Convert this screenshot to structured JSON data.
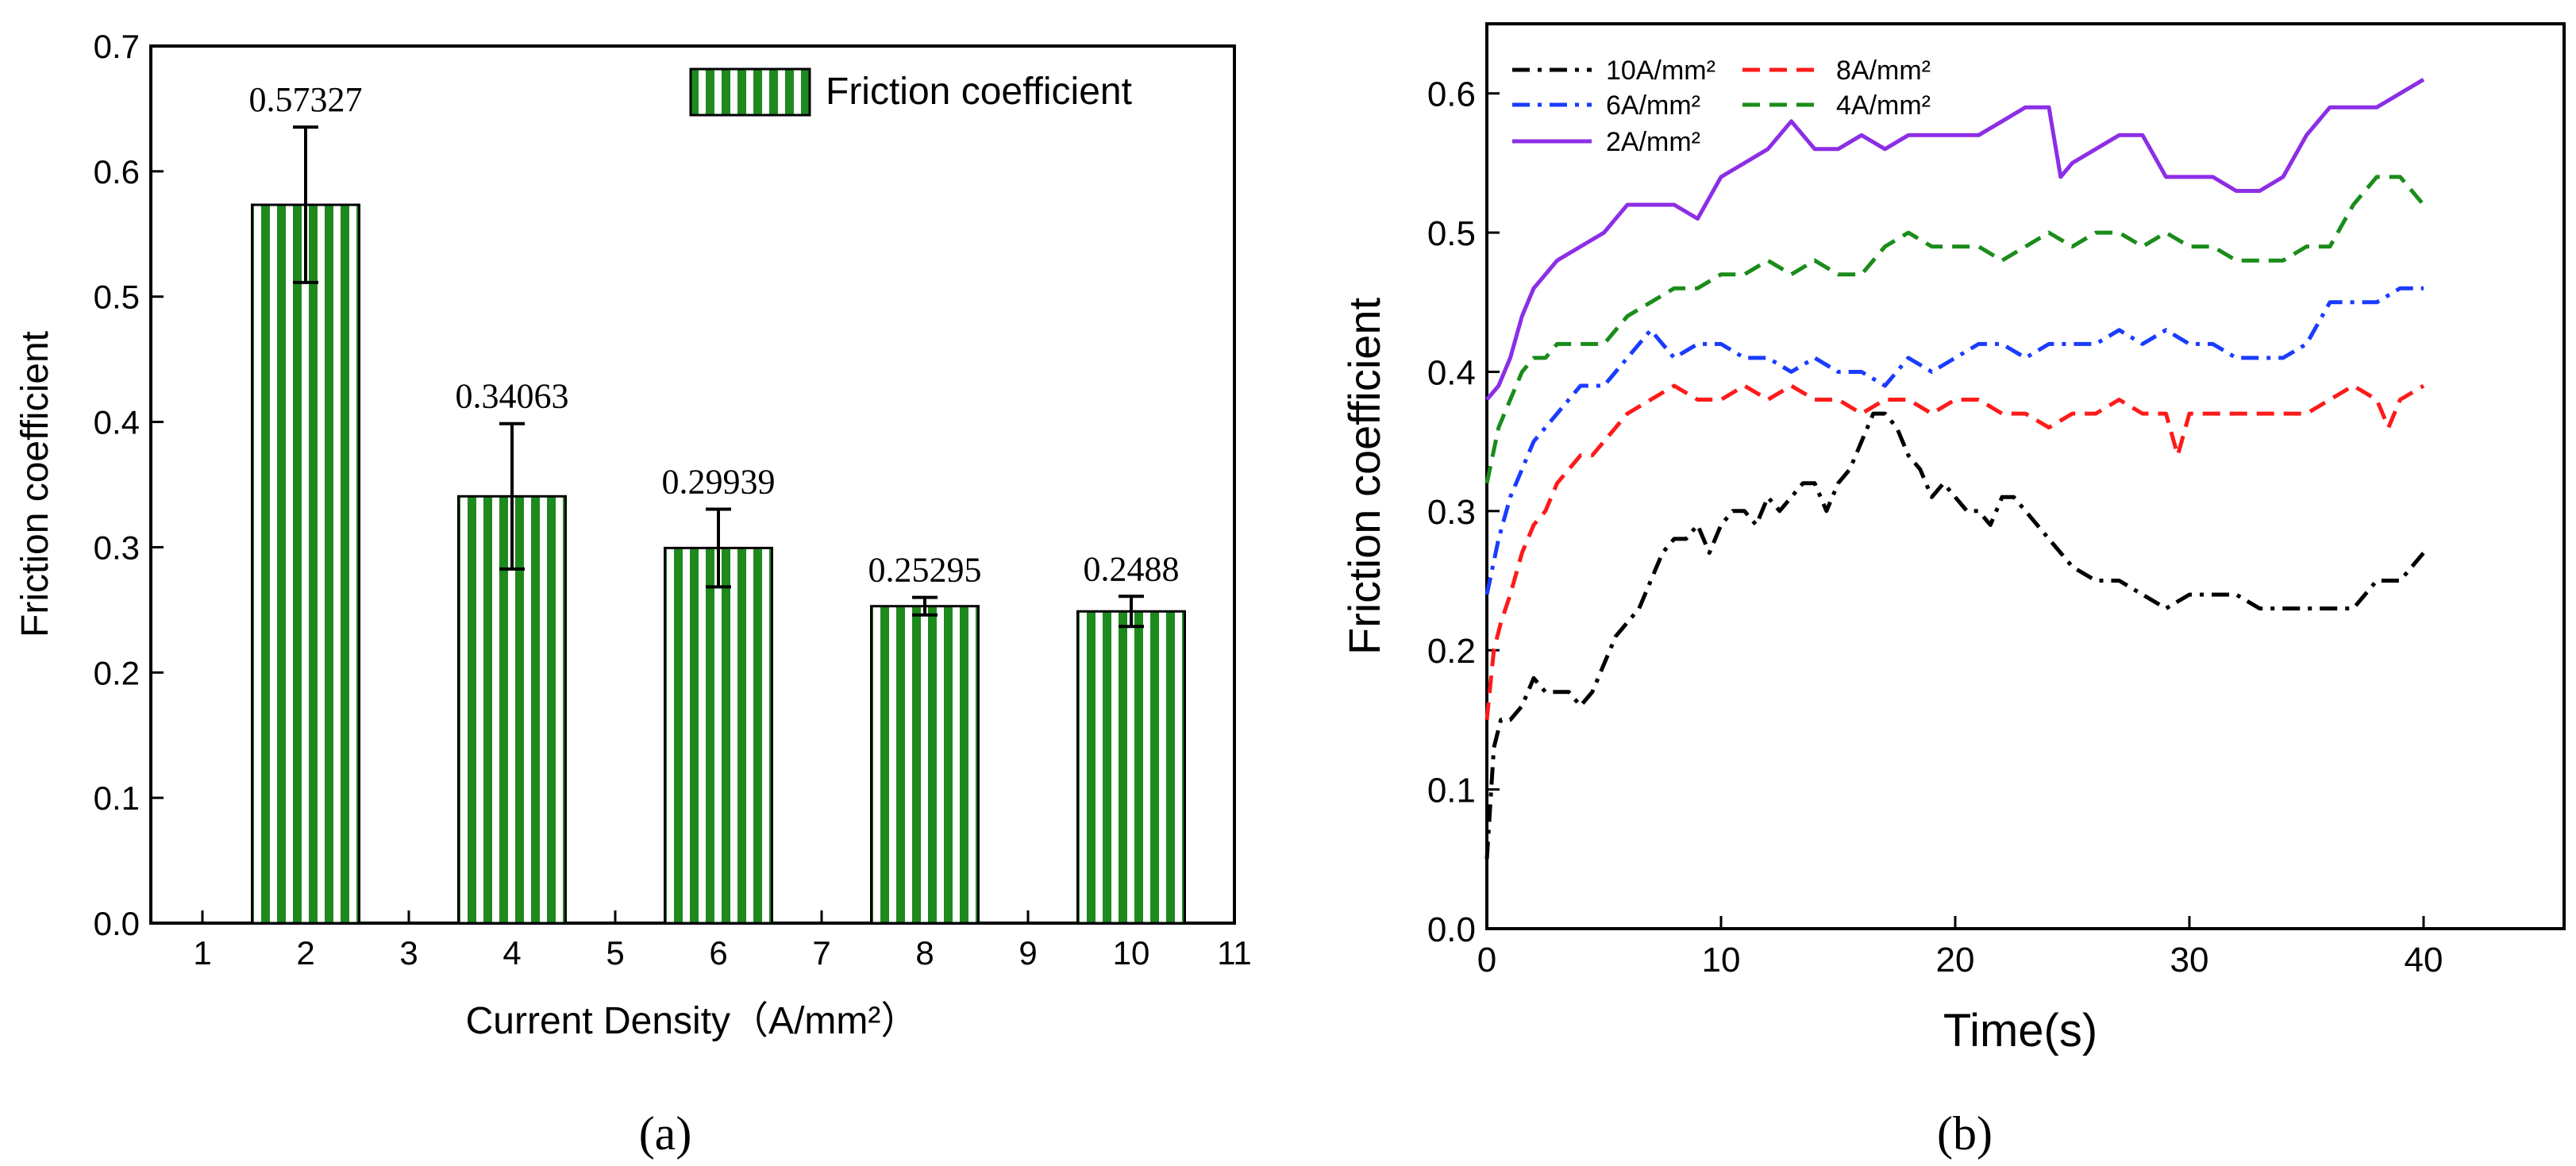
{
  "chart_data": [
    {
      "panel_label": "(a)",
      "type": "bar",
      "categories": [
        2,
        4,
        6,
        8,
        10
      ],
      "values": [
        0.57327,
        0.34063,
        0.29939,
        0.25295,
        0.2488
      ],
      "errors": [
        0.062,
        0.058,
        0.031,
        0.007,
        0.012
      ],
      "value_labels": [
        "0.57327",
        "0.34063",
        "0.29939",
        "0.25295",
        "0.2488"
      ],
      "legend": [
        "Friction coefficient"
      ],
      "legend_position": "top-right",
      "xlabel": "Current Density（A/mm²）",
      "ylabel": "Friction coefficient",
      "xlim": [
        0.5,
        11
      ],
      "ylim": [
        0,
        0.7
      ],
      "xticks": [
        "1",
        "2",
        "3",
        "4",
        "5",
        "6",
        "7",
        "8",
        "9",
        "10",
        "11"
      ],
      "yticks": [
        "0.0",
        "0.1",
        "0.2",
        "0.3",
        "0.4",
        "0.5",
        "0.6",
        "0.7"
      ],
      "grid": false,
      "colors": {
        "bar_fill": "#1e8a1e",
        "bar_stripe": "#ffffff",
        "bar_edge": "#000000"
      }
    },
    {
      "panel_label": "(b)",
      "type": "line",
      "xlabel": "Time(s)",
      "ylabel": "Friction coefficient",
      "xlim": [
        0,
        46
      ],
      "ylim": [
        0,
        0.65
      ],
      "xticks": [
        "0",
        "10",
        "20",
        "30",
        "40"
      ],
      "yticks": [
        "0.0",
        "0.1",
        "0.2",
        "0.3",
        "0.4",
        "0.5",
        "0.6"
      ],
      "grid": false,
      "legend_position": "top-left",
      "series": [
        {
          "name": "10A/mm²",
          "color": "#000000",
          "dash": "dash-dot",
          "x": [
            0,
            0.3,
            0.6,
            1,
            1.5,
            2,
            2.5,
            3,
            3.5,
            4,
            4.5,
            5,
            5.5,
            6,
            6.5,
            7,
            7.5,
            8,
            8.5,
            9,
            9.5,
            10,
            10.5,
            11,
            11.5,
            12,
            12.5,
            13,
            13.5,
            14,
            14.5,
            15,
            15.5,
            16,
            16.5,
            17,
            17.5,
            18,
            18.5,
            19,
            19.5,
            20,
            20.5,
            21,
            21.5,
            22,
            22.5,
            23,
            23.5,
            24,
            24.5,
            25,
            26,
            27,
            28,
            29,
            30,
            31,
            32,
            33,
            34,
            35,
            36,
            37,
            38,
            39,
            40
          ],
          "y": [
            0.05,
            0.13,
            0.15,
            0.15,
            0.16,
            0.18,
            0.17,
            0.17,
            0.17,
            0.16,
            0.17,
            0.19,
            0.21,
            0.22,
            0.23,
            0.25,
            0.27,
            0.28,
            0.28,
            0.29,
            0.27,
            0.29,
            0.3,
            0.3,
            0.29,
            0.31,
            0.3,
            0.31,
            0.32,
            0.32,
            0.3,
            0.32,
            0.33,
            0.35,
            0.37,
            0.37,
            0.36,
            0.34,
            0.33,
            0.31,
            0.32,
            0.31,
            0.3,
            0.3,
            0.29,
            0.31,
            0.31,
            0.3,
            0.29,
            0.28,
            0.27,
            0.26,
            0.25,
            0.25,
            0.24,
            0.23,
            0.24,
            0.24,
            0.24,
            0.23,
            0.23,
            0.23,
            0.23,
            0.23,
            0.25,
            0.25,
            0.27
          ]
        },
        {
          "name": "8A/mm²",
          "color": "#ff1a1a",
          "dash": "dash",
          "x": [
            0,
            0.3,
            0.6,
            1,
            1.5,
            2,
            2.5,
            3,
            3.5,
            4,
            4.5,
            5,
            5.5,
            6,
            7,
            8,
            9,
            10,
            11,
            12,
            13,
            14,
            15,
            16,
            17,
            18,
            19,
            20,
            21,
            22,
            23,
            24,
            25,
            26,
            27,
            28,
            29,
            29.5,
            30,
            31,
            32,
            33,
            34,
            35,
            36,
            37,
            38,
            38.5,
            39,
            40
          ],
          "y": [
            0.15,
            0.2,
            0.22,
            0.24,
            0.27,
            0.29,
            0.3,
            0.32,
            0.33,
            0.34,
            0.34,
            0.35,
            0.36,
            0.37,
            0.38,
            0.39,
            0.38,
            0.38,
            0.39,
            0.38,
            0.39,
            0.38,
            0.38,
            0.37,
            0.38,
            0.38,
            0.37,
            0.38,
            0.38,
            0.37,
            0.37,
            0.36,
            0.37,
            0.37,
            0.38,
            0.37,
            0.37,
            0.34,
            0.37,
            0.37,
            0.37,
            0.37,
            0.37,
            0.37,
            0.38,
            0.39,
            0.38,
            0.36,
            0.38,
            0.39
          ]
        },
        {
          "name": "6A/mm²",
          "color": "#1a3cff",
          "dash": "dash-dot",
          "x": [
            0,
            0.5,
            1,
            1.5,
            2,
            2.5,
            3,
            3.5,
            4,
            5,
            6,
            7,
            8,
            9,
            10,
            11,
            12,
            13,
            14,
            15,
            16,
            17,
            18,
            19,
            20,
            21,
            22,
            23,
            24,
            25,
            26,
            27,
            28,
            29,
            30,
            31,
            32,
            33,
            34,
            35,
            36,
            37,
            38,
            39,
            40
          ],
          "y": [
            0.24,
            0.28,
            0.31,
            0.33,
            0.35,
            0.36,
            0.37,
            0.38,
            0.39,
            0.39,
            0.41,
            0.43,
            0.41,
            0.42,
            0.42,
            0.41,
            0.41,
            0.4,
            0.41,
            0.4,
            0.4,
            0.39,
            0.41,
            0.4,
            0.41,
            0.42,
            0.42,
            0.41,
            0.42,
            0.42,
            0.42,
            0.43,
            0.42,
            0.43,
            0.42,
            0.42,
            0.41,
            0.41,
            0.41,
            0.42,
            0.45,
            0.45,
            0.45,
            0.46,
            0.46
          ]
        },
        {
          "name": "4A/mm²",
          "color": "#1a8c1a",
          "dash": "dash",
          "x": [
            0,
            0.5,
            1,
            1.5,
            2,
            2.5,
            3,
            4,
            5,
            6,
            7,
            8,
            9,
            10,
            11,
            12,
            13,
            14,
            15,
            16,
            17,
            18,
            19,
            20,
            21,
            22,
            23,
            24,
            25,
            26,
            27,
            28,
            29,
            30,
            31,
            32,
            33,
            34,
            35,
            36,
            37,
            38,
            39,
            40
          ],
          "y": [
            0.32,
            0.36,
            0.38,
            0.4,
            0.41,
            0.41,
            0.42,
            0.42,
            0.42,
            0.44,
            0.45,
            0.46,
            0.46,
            0.47,
            0.47,
            0.48,
            0.47,
            0.48,
            0.47,
            0.47,
            0.49,
            0.5,
            0.49,
            0.49,
            0.49,
            0.48,
            0.49,
            0.5,
            0.49,
            0.5,
            0.5,
            0.49,
            0.5,
            0.49,
            0.49,
            0.48,
            0.48,
            0.48,
            0.49,
            0.49,
            0.52,
            0.54,
            0.54,
            0.52
          ]
        },
        {
          "name": "2A/mm²",
          "color": "#8c2ee6",
          "dash": "solid",
          "x": [
            0,
            0.5,
            1,
            1.5,
            2,
            2.5,
            3,
            4,
            5,
            6,
            7,
            8,
            9,
            10,
            11,
            12,
            13,
            14,
            15,
            16,
            17,
            18,
            19,
            20,
            21,
            22,
            23,
            24,
            24.5,
            25,
            26,
            27,
            28,
            29,
            30,
            31,
            32,
            33,
            34,
            35,
            36,
            37,
            38,
            39,
            40
          ],
          "y": [
            0.38,
            0.39,
            0.41,
            0.44,
            0.46,
            0.47,
            0.48,
            0.49,
            0.5,
            0.52,
            0.52,
            0.52,
            0.51,
            0.54,
            0.55,
            0.56,
            0.58,
            0.56,
            0.56,
            0.57,
            0.56,
            0.57,
            0.57,
            0.57,
            0.57,
            0.58,
            0.59,
            0.59,
            0.54,
            0.55,
            0.56,
            0.57,
            0.57,
            0.54,
            0.54,
            0.54,
            0.53,
            0.53,
            0.54,
            0.57,
            0.59,
            0.59,
            0.59,
            0.6,
            0.61
          ]
        }
      ]
    }
  ]
}
